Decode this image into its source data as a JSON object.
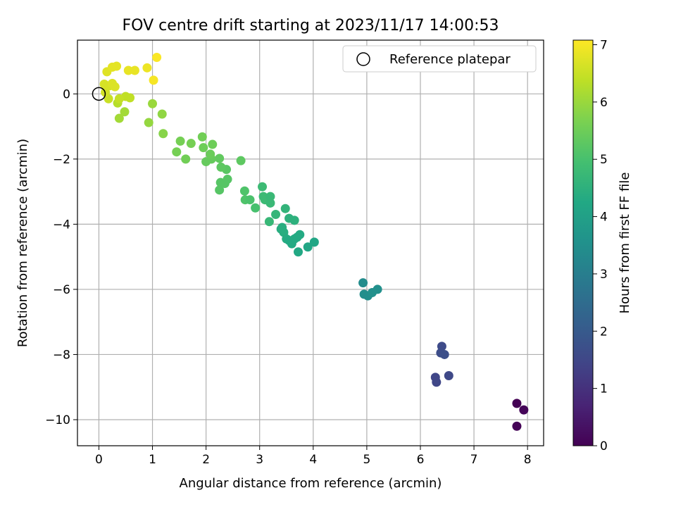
{
  "chart_data": {
    "type": "scatter",
    "title": "FOV centre drift starting at 2023/11/17 14:00:53",
    "xlabel": "Angular distance from reference (arcmin)",
    "ylabel": "Rotation from reference (arcmin)",
    "xlim": [
      -0.4,
      8.3
    ],
    "ylim": [
      -10.8,
      1.65
    ],
    "xticks": [
      0,
      1,
      2,
      3,
      4,
      5,
      6,
      7,
      8
    ],
    "yticks": [
      -10,
      -8,
      -6,
      -4,
      -2,
      0
    ],
    "grid": true,
    "legend": {
      "placement": "top-right",
      "entries": [
        "Reference platepar"
      ]
    },
    "reference": {
      "name": "Reference platepar",
      "x": 0,
      "y": 0,
      "marker": "hollow-circle"
    },
    "colorbar": {
      "label": "Hours from first FF file",
      "colormap": "viridis",
      "min": 0,
      "max": 7.08,
      "ticks": [
        0,
        1,
        2,
        3,
        4,
        5,
        6,
        7
      ]
    },
    "series": [
      {
        "points": [
          {
            "x": 7.8,
            "y": -9.5,
            "c": 0.0
          },
          {
            "x": 7.93,
            "y": -9.7,
            "c": 0.1
          },
          {
            "x": 7.8,
            "y": -10.2,
            "c": 0.05
          },
          {
            "x": 6.4,
            "y": -7.75,
            "c": 1.6
          },
          {
            "x": 6.38,
            "y": -7.95,
            "c": 1.65
          },
          {
            "x": 6.45,
            "y": -8.0,
            "c": 1.7
          },
          {
            "x": 6.28,
            "y": -8.7,
            "c": 1.5
          },
          {
            "x": 6.3,
            "y": -8.85,
            "c": 1.5
          },
          {
            "x": 6.53,
            "y": -8.65,
            "c": 1.55
          },
          {
            "x": 4.93,
            "y": -5.8,
            "c": 3.4
          },
          {
            "x": 4.95,
            "y": -6.15,
            "c": 3.45
          },
          {
            "x": 5.02,
            "y": -6.2,
            "c": 3.45
          },
          {
            "x": 5.1,
            "y": -6.1,
            "c": 3.5
          },
          {
            "x": 5.2,
            "y": -6.0,
            "c": 3.5
          },
          {
            "x": 3.05,
            "y": -2.85,
            "c": 4.8
          },
          {
            "x": 3.07,
            "y": -3.15,
            "c": 4.8
          },
          {
            "x": 3.1,
            "y": -3.25,
            "c": 4.8
          },
          {
            "x": 3.2,
            "y": -3.15,
            "c": 4.75
          },
          {
            "x": 3.2,
            "y": -3.35,
            "c": 4.75
          },
          {
            "x": 3.18,
            "y": -3.92,
            "c": 4.7
          },
          {
            "x": 3.3,
            "y": -3.7,
            "c": 4.65
          },
          {
            "x": 3.48,
            "y": -3.52,
            "c": 4.6
          },
          {
            "x": 3.55,
            "y": -3.82,
            "c": 4.5
          },
          {
            "x": 3.65,
            "y": -3.88,
            "c": 4.5
          },
          {
            "x": 3.4,
            "y": -4.15,
            "c": 4.4
          },
          {
            "x": 3.45,
            "y": -4.25,
            "c": 4.4
          },
          {
            "x": 3.5,
            "y": -4.45,
            "c": 4.35
          },
          {
            "x": 3.55,
            "y": -4.5,
            "c": 4.3
          },
          {
            "x": 3.6,
            "y": -4.6,
            "c": 4.3
          },
          {
            "x": 3.65,
            "y": -4.45,
            "c": 4.3
          },
          {
            "x": 3.7,
            "y": -4.4,
            "c": 4.3
          },
          {
            "x": 3.75,
            "y": -4.32,
            "c": 4.3
          },
          {
            "x": 3.72,
            "y": -4.85,
            "c": 4.25
          },
          {
            "x": 3.9,
            "y": -4.7,
            "c": 4.2
          },
          {
            "x": 4.02,
            "y": -4.55,
            "c": 4.2
          },
          {
            "x": 3.42,
            "y": -4.1,
            "c": 4.4
          },
          {
            "x": 2.72,
            "y": -2.98,
            "c": 5.1
          },
          {
            "x": 2.73,
            "y": -3.25,
            "c": 5.1
          },
          {
            "x": 2.82,
            "y": -3.25,
            "c": 5.05
          },
          {
            "x": 2.92,
            "y": -3.5,
            "c": 5.0
          },
          {
            "x": 2.25,
            "y": -2.95,
            "c": 5.2
          },
          {
            "x": 2.27,
            "y": -2.72,
            "c": 5.2
          },
          {
            "x": 2.35,
            "y": -2.75,
            "c": 5.2
          },
          {
            "x": 2.4,
            "y": -2.62,
            "c": 5.2
          },
          {
            "x": 2.38,
            "y": -2.32,
            "c": 5.25
          },
          {
            "x": 2.28,
            "y": -2.25,
            "c": 5.3
          },
          {
            "x": 2.25,
            "y": -1.98,
            "c": 5.35
          },
          {
            "x": 2.1,
            "y": -2.0,
            "c": 5.4
          },
          {
            "x": 2.0,
            "y": -2.08,
            "c": 5.4
          },
          {
            "x": 2.08,
            "y": -1.85,
            "c": 5.45
          },
          {
            "x": 2.12,
            "y": -1.55,
            "c": 5.5
          },
          {
            "x": 1.95,
            "y": -1.65,
            "c": 5.5
          },
          {
            "x": 1.93,
            "y": -1.32,
            "c": 5.55
          },
          {
            "x": 2.65,
            "y": -2.05,
            "c": 5.3
          },
          {
            "x": 1.72,
            "y": -1.52,
            "c": 5.6
          },
          {
            "x": 1.52,
            "y": -1.45,
            "c": 5.6
          },
          {
            "x": 1.45,
            "y": -1.78,
            "c": 5.6
          },
          {
            "x": 1.62,
            "y": -2.0,
            "c": 5.55
          },
          {
            "x": 1.2,
            "y": -1.22,
            "c": 5.8
          },
          {
            "x": 1.18,
            "y": -0.62,
            "c": 5.9
          },
          {
            "x": 1.0,
            "y": -0.3,
            "c": 6.0
          },
          {
            "x": 0.93,
            "y": -0.88,
            "c": 5.95
          },
          {
            "x": 0.48,
            "y": -0.55,
            "c": 6.1
          },
          {
            "x": 0.38,
            "y": -0.75,
            "c": 6.1
          },
          {
            "x": 0.35,
            "y": -0.28,
            "c": 6.3
          },
          {
            "x": 0.5,
            "y": -0.08,
            "c": 6.4
          },
          {
            "x": 0.58,
            "y": -0.12,
            "c": 6.4
          },
          {
            "x": 0.38,
            "y": -0.15,
            "c": 6.45
          },
          {
            "x": 0.18,
            "y": -0.15,
            "c": 6.5
          },
          {
            "x": 0.12,
            "y": 0.05,
            "c": 6.6
          },
          {
            "x": 0.1,
            "y": 0.3,
            "c": 6.65
          },
          {
            "x": 0.2,
            "y": 0.25,
            "c": 6.65
          },
          {
            "x": 0.25,
            "y": 0.32,
            "c": 6.7
          },
          {
            "x": 0.3,
            "y": 0.22,
            "c": 6.7
          },
          {
            "x": 0.15,
            "y": 0.68,
            "c": 6.75
          },
          {
            "x": 0.25,
            "y": 0.82,
            "c": 6.8
          },
          {
            "x": 0.33,
            "y": 0.85,
            "c": 6.8
          },
          {
            "x": 0.55,
            "y": 0.72,
            "c": 6.85
          },
          {
            "x": 0.67,
            "y": 0.72,
            "c": 6.85
          },
          {
            "x": 0.9,
            "y": 0.8,
            "c": 6.9
          },
          {
            "x": 1.02,
            "y": 0.42,
            "c": 7.0
          },
          {
            "x": 1.08,
            "y": 1.12,
            "c": 7.05
          }
        ]
      }
    ]
  }
}
